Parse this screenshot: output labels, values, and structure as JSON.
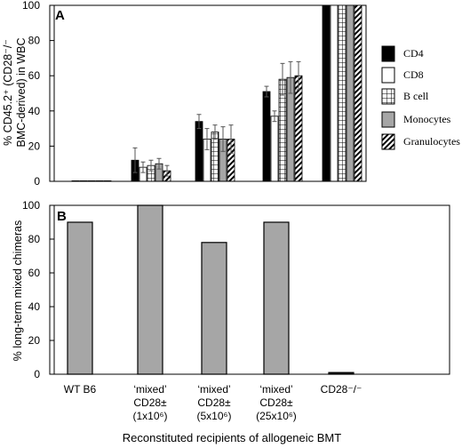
{
  "chart_data": [
    {
      "type": "bar",
      "panel_label": "A",
      "ylabel_lines": [
        "% CD45.2⁺ (CD28⁻/⁻",
        "BMC-derived) in WBC"
      ],
      "ylim": [
        0,
        100
      ],
      "yticks": [
        "0",
        "20",
        "40",
        "60",
        "80",
        "100"
      ],
      "categories": [
        "WT B6",
        "'mixed' CD28± (1x10⁶)",
        "'mixed' CD28± (5x10⁶)",
        "'mixed' CD28± (25x10⁶)",
        "CD28⁻/⁻"
      ],
      "legend_position": "right",
      "series": [
        {
          "name": "CD4",
          "pattern": "solid-black",
          "values": [
            0.3,
            12,
            34,
            51,
            100
          ],
          "errors": [
            0,
            7,
            4,
            3,
            0
          ]
        },
        {
          "name": "CD8",
          "pattern": "white",
          "values": [
            0.3,
            8,
            24,
            37,
            100
          ],
          "errors": [
            0,
            3,
            6,
            3,
            0
          ]
        },
        {
          "name": "B cell",
          "pattern": "grid",
          "values": [
            0.3,
            9,
            28,
            58,
            100
          ],
          "errors": [
            0,
            3,
            4,
            9,
            0
          ]
        },
        {
          "name": "Monocytes",
          "pattern": "gray",
          "values": [
            0.3,
            10,
            24,
            59,
            100
          ],
          "errors": [
            0,
            3,
            7,
            9,
            0
          ]
        },
        {
          "name": "Granulocytes",
          "pattern": "diagonal",
          "values": [
            0.3,
            6,
            24,
            60,
            100
          ],
          "errors": [
            0,
            3,
            8,
            8,
            0
          ]
        }
      ]
    },
    {
      "type": "bar",
      "panel_label": "B",
      "ylabel": "% long-term mixed chimeras",
      "ylim": [
        0,
        100
      ],
      "yticks": [
        "0",
        "20",
        "40",
        "60",
        "80",
        "100"
      ],
      "categories": [
        "WT B6",
        "'mixed' CD28± (1x10⁶)",
        "'mixed' CD28± (5x10⁶)",
        "'mixed' CD28± (25x10⁶)",
        "CD28⁻/⁻"
      ],
      "values": [
        90,
        100,
        78,
        90,
        1
      ],
      "xlabel": "Reconstituted recipients of allogeneic BMT"
    }
  ],
  "category_label_lines": [
    [
      "WT B6"
    ],
    [
      "‘mixed’",
      "CD28±",
      "(1x10⁶)"
    ],
    [
      "‘mixed’",
      "CD28±",
      "(5x10⁶)"
    ],
    [
      "‘mixed’",
      "CD28±",
      "(25x10⁶)"
    ],
    [
      "CD28⁻/⁻"
    ]
  ],
  "colors": {
    "CD4": "#000000",
    "CD8": "#ffffff",
    "B cell": "#ffffff",
    "Monocytes": "#a6a6a6",
    "Granulocytes": "#ffffff",
    "panel_b_bar": "#a6a6a6",
    "outline": "#000000"
  }
}
